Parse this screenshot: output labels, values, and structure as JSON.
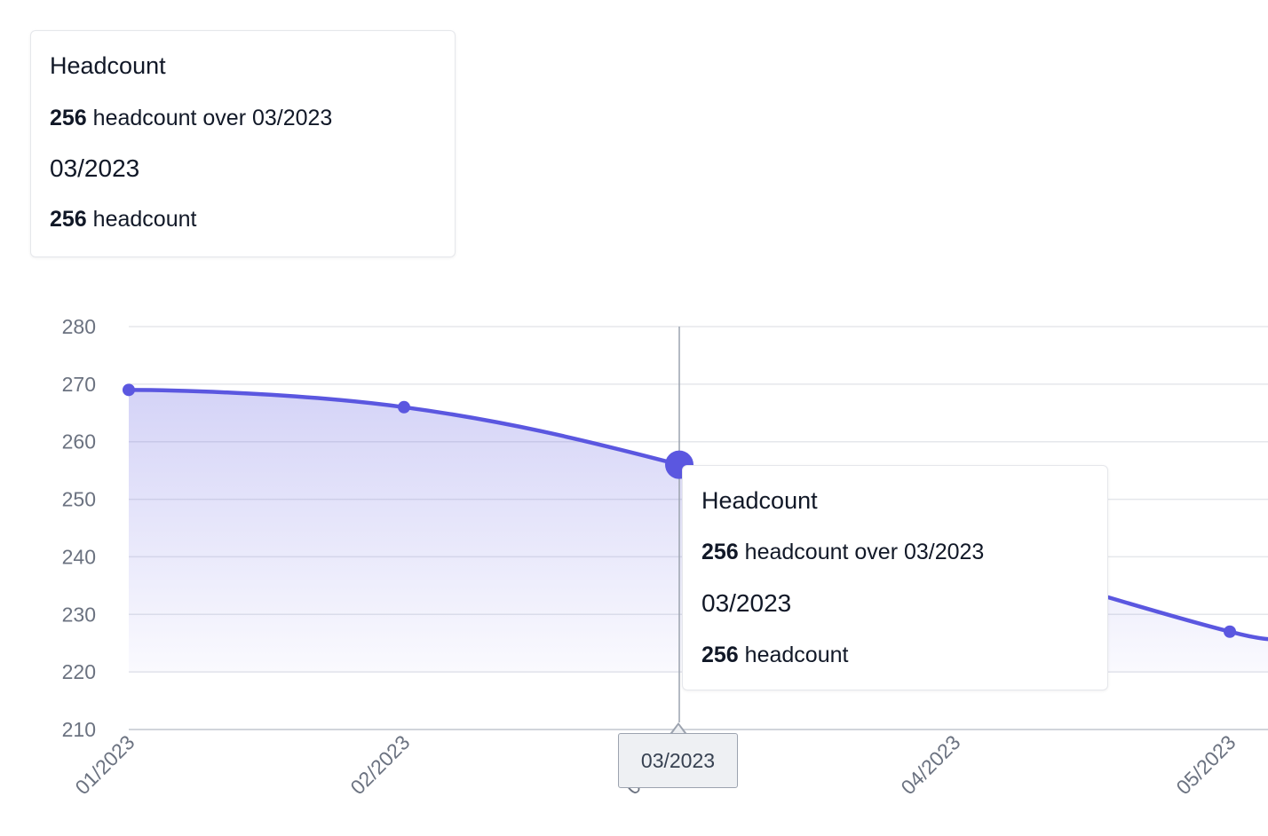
{
  "summary_tooltip": {
    "title": "Headcount",
    "value": "256",
    "value_suffix": "headcount over 03/2023",
    "date": "03/2023",
    "value2": "256",
    "value2_suffix": "headcount"
  },
  "hover_tooltip": {
    "title": "Headcount",
    "value": "256",
    "value_suffix": "headcount over 03/2023",
    "date": "03/2023",
    "value2": "256",
    "value2_suffix": "headcount"
  },
  "crosshair": {
    "label": "03/2023",
    "category": "03/2023"
  },
  "colors": {
    "series": "#5b57e0",
    "grid": "#e5e7eb",
    "axis_text": "#6b7280",
    "crosshair": "#9ca3af"
  },
  "chart_data": {
    "type": "area",
    "categories": [
      "01/2023",
      "02/2023",
      "03/2023",
      "04/2023",
      "05/2023"
    ],
    "series": [
      {
        "values": [
          269,
          266,
          256,
          241,
          227
        ]
      }
    ],
    "y_ticks": [
      280,
      270,
      260,
      250,
      240,
      230,
      220,
      210
    ],
    "ylim": [
      210,
      280
    ],
    "grid": true,
    "highlighted": "03/2023"
  }
}
